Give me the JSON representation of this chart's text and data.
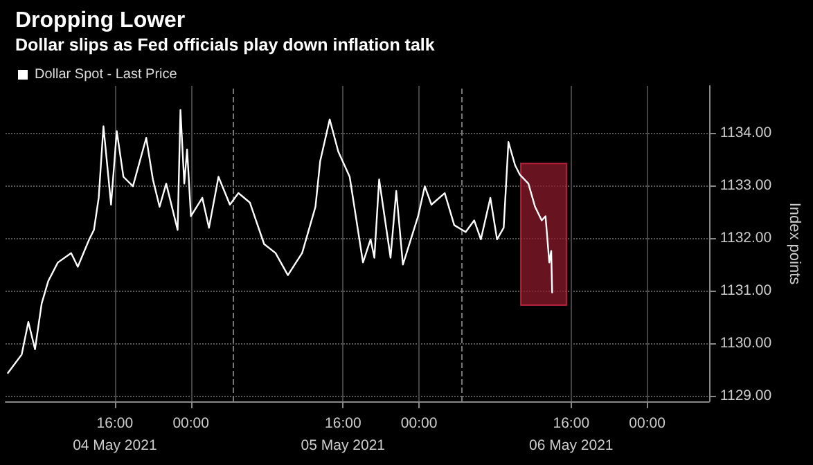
{
  "chart_data": {
    "type": "line",
    "title": "Dropping Lower",
    "subtitle": "Dollar slips as Fed officials play down inflation talk",
    "ylabel": "Index points",
    "x": [
      "2021-05-04T04:45",
      "2021-05-04T06:12",
      "2021-05-04T06:54",
      "2021-05-04T07:36",
      "2021-05-04T08:18",
      "2021-05-04T09:00",
      "2021-05-04T10:00",
      "2021-05-04T11:24",
      "2021-05-04T12:06",
      "2021-05-04T13:18",
      "2021-05-04T13:48",
      "2021-05-04T14:18",
      "2021-05-04T14:48",
      "2021-05-04T15:36",
      "2021-05-04T16:12",
      "2021-05-04T16:54",
      "2021-05-04T17:54",
      "2021-05-04T19:18",
      "2021-05-04T20:00",
      "2021-05-04T20:42",
      "2021-05-04T21:24",
      "2021-05-04T22:36",
      "2021-05-04T22:54",
      "2021-05-04T23:18",
      "2021-05-04T23:36",
      "2021-05-05T00:00",
      "2021-05-05T01:12",
      "2021-05-05T01:54",
      "2021-05-05T02:54",
      "2021-05-05T04:06",
      "2021-05-05T05:00",
      "2021-05-05T06:12",
      "2021-05-05T07:42",
      "2021-05-05T08:54",
      "2021-05-05T10:12",
      "2021-05-05T11:42",
      "2021-05-05T13:06",
      "2021-05-05T13:36",
      "2021-05-05T14:36",
      "2021-05-05T15:30",
      "2021-05-05T16:42",
      "2021-05-05T18:06",
      "2021-05-05T18:54",
      "2021-05-05T19:18",
      "2021-05-05T19:48",
      "2021-05-05T21:00",
      "2021-05-05T21:36",
      "2021-05-05T22:18",
      "2021-05-05T23:54",
      "2021-05-06T00:36",
      "2021-05-06T01:18",
      "2021-05-06T02:42",
      "2021-05-06T03:42",
      "2021-05-06T04:54",
      "2021-05-06T05:48",
      "2021-05-06T06:30",
      "2021-05-06T07:30",
      "2021-05-06T08:12",
      "2021-05-06T08:54",
      "2021-05-06T09:24",
      "2021-05-06T10:06",
      "2021-05-06T10:36",
      "2021-05-06T11:30",
      "2021-05-06T12:12",
      "2021-05-06T12:54",
      "2021-05-06T13:18",
      "2021-05-06T13:42",
      "2021-05-06T13:54",
      "2021-05-06T14:00"
    ],
    "series": [
      {
        "name": "Dollar Spot - Last Price",
        "color": "#ffffff",
        "values": [
          1129.44,
          1129.79,
          1130.41,
          1129.89,
          1130.76,
          1131.19,
          1131.54,
          1131.72,
          1131.46,
          1131.98,
          1132.16,
          1132.77,
          1134.13,
          1132.64,
          1134.04,
          1133.17,
          1132.99,
          1133.91,
          1133.12,
          1132.6,
          1133.04,
          1132.16,
          1134.44,
          1133.04,
          1133.69,
          1132.42,
          1132.77,
          1132.2,
          1133.17,
          1132.64,
          1132.86,
          1132.68,
          1131.89,
          1131.72,
          1131.3,
          1131.72,
          1132.6,
          1133.47,
          1134.26,
          1133.65,
          1133.17,
          1131.54,
          1131.98,
          1131.63,
          1133.12,
          1131.63,
          1132.9,
          1131.5,
          1132.42,
          1132.99,
          1132.64,
          1132.86,
          1132.25,
          1132.12,
          1132.34,
          1131.98,
          1132.77,
          1131.98,
          1132.2,
          1133.83,
          1133.39,
          1133.21,
          1133.04,
          1132.6,
          1132.34,
          1132.42,
          1131.54,
          1131.76,
          1130.97
        ]
      }
    ],
    "xlim": [
      "2021-05-04T04:30",
      "2021-05-07T06:30"
    ],
    "xticks": [
      {
        "value": "2021-05-04T16:00",
        "label": "16:00\n04 May 2021"
      },
      {
        "value": "2021-05-05T00:00",
        "label": "00:00"
      },
      {
        "value": "2021-05-05T16:00",
        "label": "16:00\n05 May 2021"
      },
      {
        "value": "2021-05-06T00:00",
        "label": "00:00"
      },
      {
        "value": "2021-05-06T16:00",
        "label": "16:00\n06 May 2021"
      },
      {
        "value": "2021-05-07T00:00",
        "label": "00:00"
      }
    ],
    "ylim": [
      1128.9,
      1134.9
    ],
    "yticks": [
      {
        "value": 1129,
        "label": "1129.00"
      },
      {
        "value": 1130,
        "label": "1130.00"
      },
      {
        "value": 1131,
        "label": "1131.00"
      },
      {
        "value": 1132,
        "label": "1132.00"
      },
      {
        "value": 1133,
        "label": "1133.00"
      },
      {
        "value": 1134,
        "label": "1134.00"
      }
    ],
    "ref_lines": [
      {
        "axis": "x",
        "value": "2021-05-05T04:30",
        "color": "#777777",
        "line_style": "dashed"
      },
      {
        "axis": "x",
        "value": "2021-05-06T04:30",
        "color": "#777777",
        "line_style": "dashed"
      }
    ],
    "bands": [
      {
        "axis": "x",
        "from": "2021-05-06T10:42",
        "to": "2021-05-06T15:30",
        "color": "#8b1a2b"
      }
    ],
    "grid": true,
    "legend": "top left",
    "marker": "none",
    "line_style": "solid"
  }
}
